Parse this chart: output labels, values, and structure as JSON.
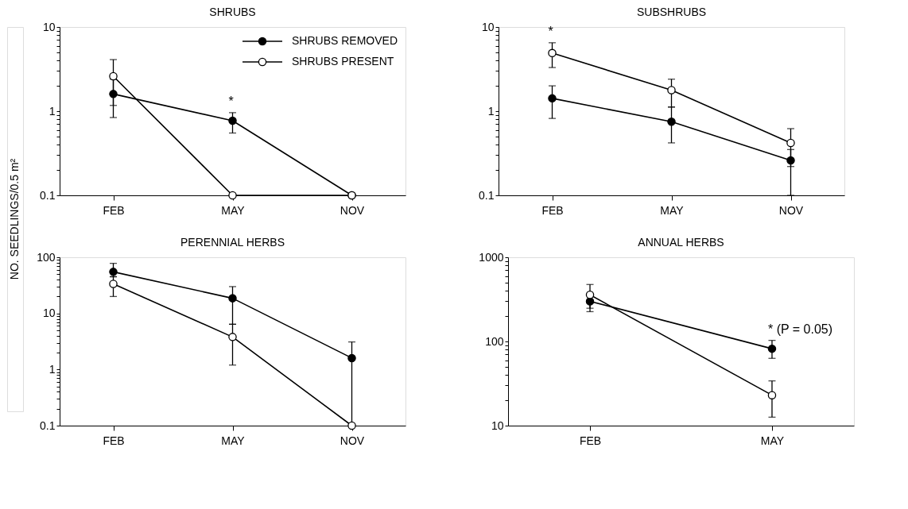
{
  "chart_data": [
    {
      "type": "line",
      "title": "SHRUBS",
      "ylabel": "NO. SEEDLINGS/0.5 m²",
      "categories": [
        "FEB",
        "MAY",
        "NOV"
      ],
      "log": true,
      "marker": "circle",
      "line_style": "solid",
      "legend": "top right",
      "ylim": [
        0.1,
        10
      ],
      "yticks": [
        0.1,
        {
          "value": 0.2,
          "label": null
        },
        {
          "value": 0.3,
          "label": null
        },
        {
          "value": 0.4,
          "label": null
        },
        {
          "value": 0.5,
          "label": null
        },
        {
          "value": 0.6,
          "label": null
        },
        {
          "value": 0.7,
          "label": null
        },
        {
          "value": 0.8,
          "label": null
        },
        {
          "value": 0.9,
          "label": null
        },
        1,
        {
          "value": 2,
          "label": null
        },
        {
          "value": 3,
          "label": null
        },
        {
          "value": 4,
          "label": null
        },
        {
          "value": 5,
          "label": null
        },
        {
          "value": 6,
          "label": null
        },
        {
          "value": 7,
          "label": null
        },
        {
          "value": 8,
          "label": null
        },
        {
          "value": 9,
          "label": null
        },
        10
      ],
      "series": [
        {
          "name": "SHRUBS REMOVED",
          "color": "#000000",
          "values": [
            1.6,
            0.77,
            0.1
          ],
          "errors": [
            [
              0.84,
              2.4
            ],
            [
              0.55,
              0.96
            ],
            null
          ]
        },
        {
          "name": "SHRUBS PRESENT",
          "color": "#ffffff",
          "values": [
            2.6,
            0.1,
            0.1
          ],
          "errors": [
            [
              1.17,
              4.1
            ],
            null,
            null
          ]
        }
      ],
      "annotations": [
        {
          "text": "*",
          "x": "MAY",
          "y": 0.96
        }
      ]
    },
    {
      "type": "line",
      "title": "SUBSHRUBS",
      "categories": [
        "FEB",
        "MAY",
        "NOV"
      ],
      "log": true,
      "marker": "circle",
      "line_style": "solid",
      "ylim": [
        0.1,
        10
      ],
      "yticks": [
        0.1,
        {
          "value": 0.2,
          "label": null
        },
        {
          "value": 0.3,
          "label": null
        },
        {
          "value": 0.4,
          "label": null
        },
        {
          "value": 0.5,
          "label": null
        },
        {
          "value": 0.6,
          "label": null
        },
        {
          "value": 0.7,
          "label": null
        },
        {
          "value": 0.8,
          "label": null
        },
        {
          "value": 0.9,
          "label": null
        },
        1,
        {
          "value": 2,
          "label": null
        },
        {
          "value": 3,
          "label": null
        },
        {
          "value": 4,
          "label": null
        },
        {
          "value": 5,
          "label": null
        },
        {
          "value": 6,
          "label": null
        },
        {
          "value": 7,
          "label": null
        },
        {
          "value": 8,
          "label": null
        },
        {
          "value": 9,
          "label": null
        },
        10
      ],
      "series": [
        {
          "color": "#000000",
          "values": [
            1.42,
            0.75,
            0.26
          ],
          "errors": [
            [
              0.82,
              2.0
            ],
            [
              0.42,
              1.12
            ],
            [
              0.1,
              0.35
            ]
          ]
        },
        {
          "color": "#ffffff",
          "values": [
            4.9,
            1.78,
            0.42
          ],
          "errors": [
            [
              3.3,
              6.5
            ],
            [
              1.12,
              2.4
            ],
            [
              0.22,
              0.62
            ]
          ]
        }
      ],
      "annotations": [
        {
          "text": "*",
          "x": "FEB",
          "y": 6.5
        }
      ]
    },
    {
      "type": "line",
      "title": "PERENNIAL HERBS",
      "categories": [
        "FEB",
        "MAY",
        "NOV"
      ],
      "log": true,
      "marker": "circle",
      "line_style": "solid",
      "ylim": [
        0.1,
        100
      ],
      "yticks": [
        0.1,
        {
          "value": 0.2,
          "label": null
        },
        {
          "value": 0.3,
          "label": null
        },
        {
          "value": 0.4,
          "label": null
        },
        {
          "value": 0.5,
          "label": null
        },
        {
          "value": 0.6,
          "label": null
        },
        {
          "value": 0.7,
          "label": null
        },
        {
          "value": 0.8,
          "label": null
        },
        {
          "value": 0.9,
          "label": null
        },
        1,
        {
          "value": 2,
          "label": null
        },
        {
          "value": 3,
          "label": null
        },
        {
          "value": 4,
          "label": null
        },
        {
          "value": 5,
          "label": null
        },
        {
          "value": 6,
          "label": null
        },
        {
          "value": 7,
          "label": null
        },
        {
          "value": 8,
          "label": null
        },
        {
          "value": 9,
          "label": null
        },
        10,
        {
          "value": 20,
          "label": null
        },
        {
          "value": 30,
          "label": null
        },
        {
          "value": 40,
          "label": null
        },
        {
          "value": 50,
          "label": null
        },
        {
          "value": 60,
          "label": null
        },
        {
          "value": 70,
          "label": null
        },
        {
          "value": 80,
          "label": null
        },
        {
          "value": 90,
          "label": null
        },
        100
      ],
      "series": [
        {
          "color": "#000000",
          "values": [
            55,
            18.6,
            1.6
          ],
          "errors": [
            [
              45,
              78
            ],
            [
              6.4,
              30
            ],
            [
              0.1,
              3.1
            ]
          ]
        },
        {
          "color": "#ffffff",
          "values": [
            33.5,
            3.8,
            0.1
          ],
          "errors": [
            [
              20,
              45
            ],
            [
              1.2,
              6.4
            ],
            null
          ]
        }
      ]
    },
    {
      "type": "line",
      "title": "ANNUAL HERBS",
      "categories": [
        "FEB",
        "MAY"
      ],
      "log": true,
      "marker": "circle",
      "line_style": "solid",
      "ylim": [
        10,
        1000
      ],
      "yticks": [
        10,
        {
          "value": 20,
          "label": null
        },
        {
          "value": 30,
          "label": null
        },
        {
          "value": 40,
          "label": null
        },
        {
          "value": 50,
          "label": null
        },
        {
          "value": 60,
          "label": null
        },
        {
          "value": 70,
          "label": null
        },
        {
          "value": 80,
          "label": null
        },
        {
          "value": 90,
          "label": null
        },
        100,
        {
          "value": 200,
          "label": null
        },
        {
          "value": 300,
          "label": null
        },
        {
          "value": 400,
          "label": null
        },
        {
          "value": 500,
          "label": null
        },
        {
          "value": 600,
          "label": null
        },
        {
          "value": 700,
          "label": null
        },
        {
          "value": 800,
          "label": null
        },
        {
          "value": 900,
          "label": null
        },
        1000
      ],
      "series": [
        {
          "color": "#000000",
          "values": [
            300,
            82
          ],
          "errors": [
            [
              248,
              350
            ],
            [
              63,
              103
            ]
          ]
        },
        {
          "color": "#ffffff",
          "values": [
            358,
            23
          ],
          "errors": [
            [
              226,
              475
            ],
            [
              12.6,
              34
            ]
          ]
        }
      ],
      "annotations": [
        {
          "text": "* (P = 0.05)",
          "x": "MAY",
          "y": 103
        }
      ]
    }
  ]
}
